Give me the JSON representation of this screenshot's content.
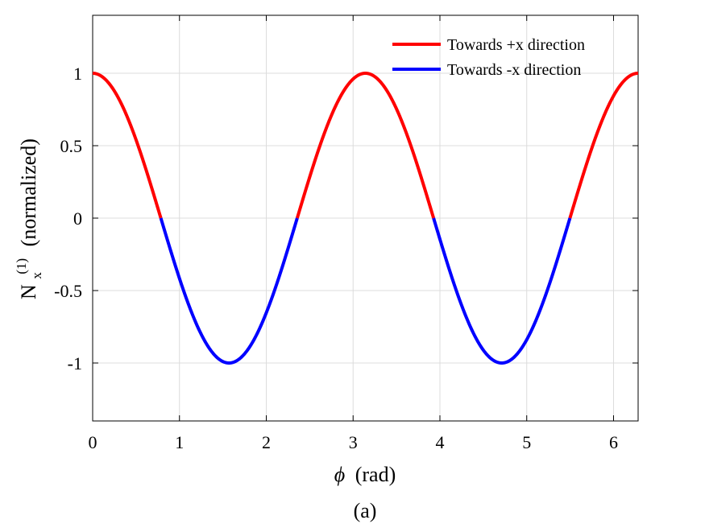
{
  "chart_data": {
    "type": "line",
    "x_expression": "phi from 0 to 2π",
    "function": "cos(2*phi)",
    "xlabel_symbol": "ϕ",
    "xlabel_rest": "(rad)",
    "ylabel_main": "N",
    "ylabel_sub": "x",
    "ylabel_sup": "(1)",
    "ylabel_rest": "(normalized)",
    "caption": "(a)",
    "xlim": [
      0,
      6.2832
    ],
    "ylim": [
      -1.4,
      1.4
    ],
    "xticks": [
      0,
      1,
      2,
      3,
      4,
      5,
      6
    ],
    "xtick_labels": [
      "0",
      "1",
      "2",
      "3",
      "4",
      "5",
      "6"
    ],
    "yticks": [
      1,
      0.5,
      0,
      -0.5,
      -1
    ],
    "ytick_labels": [
      "1",
      "0.5",
      "0",
      "-0.5",
      "-1"
    ],
    "grid": true,
    "legend_position": "top-right",
    "series": [
      {
        "name": "Towards +x direction",
        "color": "#ff0000",
        "segments": [
          [
            0,
            0.7854
          ],
          [
            2.3562,
            3.927
          ],
          [
            5.4978,
            6.2832
          ]
        ]
      },
      {
        "name": "Towards -x direction",
        "color": "#0000ff",
        "segments": [
          [
            0.7854,
            2.3562
          ],
          [
            3.927,
            5.4978
          ]
        ]
      }
    ]
  }
}
